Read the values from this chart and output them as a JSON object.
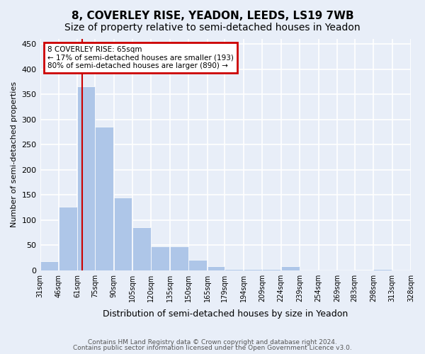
{
  "title": "8, COVERLEY RISE, YEADON, LEEDS, LS19 7WB",
  "subtitle": "Size of property relative to semi-detached houses in Yeadon",
  "xlabel": "Distribution of semi-detached houses by size in Yeadon",
  "ylabel": "Number of semi-detached properties",
  "footer1": "Contains HM Land Registry data © Crown copyright and database right 2024.",
  "footer2": "Contains public sector information licensed under the Open Government Licence v3.0.",
  "bins": [
    31,
    46,
    61,
    75,
    90,
    105,
    120,
    135,
    150,
    165,
    179,
    194,
    209,
    224,
    239,
    254,
    269,
    283,
    298,
    313,
    328
  ],
  "counts": [
    18,
    126,
    365,
    285,
    144,
    85,
    48,
    48,
    20,
    8,
    2,
    3,
    3,
    8,
    1,
    1,
    1,
    0,
    2,
    1
  ],
  "tick_labels": [
    "31sqm",
    "46sqm",
    "61sqm",
    "75sqm",
    "90sqm",
    "105sqm",
    "120sqm",
    "135sqm",
    "150sqm",
    "165sqm",
    "179sqm",
    "194sqm",
    "209sqm",
    "224sqm",
    "239sqm",
    "254sqm",
    "269sqm",
    "283sqm",
    "298sqm",
    "313sqm",
    "328sqm"
  ],
  "property_size": 65,
  "bar_color": "#aec6e8",
  "vline_color": "#cc0000",
  "annotation_box_color": "#cc0000",
  "annotation_text1": "8 COVERLEY RISE: 65sqm",
  "annotation_text2": "← 17% of semi-detached houses are smaller (193)",
  "annotation_text3": "80% of semi-detached houses are larger (890) →",
  "ylim": [
    0,
    460
  ],
  "yticks": [
    0,
    50,
    100,
    150,
    200,
    250,
    300,
    350,
    400,
    450
  ],
  "background_color": "#e8eef8",
  "grid_color": "#ffffff",
  "title_fontsize": 11,
  "subtitle_fontsize": 10
}
